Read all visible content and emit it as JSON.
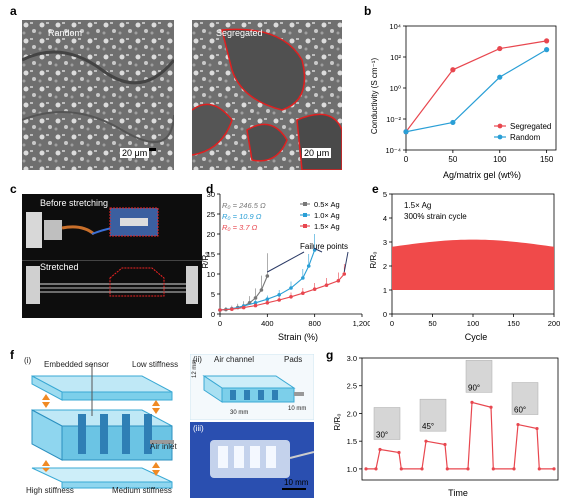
{
  "panels": {
    "a": {
      "letter": "a",
      "left_label": "Random",
      "right_label": "Segregated",
      "left_scale": "20 μm",
      "right_scale": "20 μm"
    },
    "b": {
      "letter": "b",
      "xlabel": "Ag/matrix gel (wt%)",
      "ylabel": "Conductivity (S cm⁻¹)"
    },
    "c": {
      "letter": "c",
      "top_label": "Before stretching",
      "bottom_label": "Stretched"
    },
    "d": {
      "letter": "d",
      "xlabel": "Strain (%)",
      "ylabel": "R/R₀",
      "r0_labels": [
        "R₀ = 246.5 Ω",
        "R₀ = 10.9 Ω",
        "R₀ = 3.7 Ω"
      ],
      "annotation": "Failure points"
    },
    "e": {
      "letter": "e",
      "xlabel": "Cycle",
      "ylabel": "R/R₀",
      "note_line1": "1.5× Ag",
      "note_line2": "300% strain cycle"
    },
    "f": {
      "letter": "f",
      "sub_i": "(i)",
      "sub_ii": "(ii)",
      "sub_iii": "(iii)",
      "embedded_sensor": "Embedded sensor",
      "low_stiffness": "Low stiffness",
      "air_inlet": "Air inlet",
      "high_stiffness": "High stiffness",
      "medium_stiffness": "Medium stiffness",
      "air_channel": "Air channel",
      "pads": "Pads",
      "dim_12": "12 mm",
      "dim_30": "30 mm",
      "dim_10": "10 mm",
      "scale_10mm": "10 mm"
    },
    "g": {
      "letter": "g",
      "xlabel": "Time",
      "ylabel": "R/R₀",
      "angles": [
        "30°",
        "45°",
        "90°",
        "60°"
      ]
    }
  },
  "colors": {
    "red": "#e8474f",
    "blue": "#2a9fd6",
    "gray": "#777777",
    "fill_red": "#f04a4a"
  },
  "chart_data": [
    {
      "id": "b",
      "type": "line",
      "xlabel": "Ag/matrix gel (wt%)",
      "ylabel": "Conductivity (S cm⁻¹)",
      "yscale": "log",
      "xlim": [
        0,
        160
      ],
      "ylim": [
        0.0001,
        10000
      ],
      "xticks": [
        "0",
        "50",
        "100",
        "150"
      ],
      "yticks": [
        "10⁻⁴",
        "10⁻²",
        "10⁰",
        "10²",
        "10⁴"
      ],
      "legend_position": "bottom-right",
      "series": [
        {
          "name": "Segregated",
          "x": [
            0,
            50,
            100,
            150
          ],
          "y": [
            0.0015,
            15,
            350,
            1100
          ]
        },
        {
          "name": "Random",
          "x": [
            0,
            50,
            100,
            150
          ],
          "y": [
            0.0015,
            0.006,
            5,
            300
          ]
        }
      ]
    },
    {
      "id": "d",
      "type": "line",
      "xlabel": "Strain (%)",
      "ylabel": "R/R₀",
      "xlim": [
        0,
        1200
      ],
      "ylim": [
        0,
        30
      ],
      "xticks": [
        "0",
        "400",
        "800",
        "1,200"
      ],
      "yticks": [
        "0",
        "5",
        "10",
        "15",
        "20",
        "25",
        "30"
      ],
      "series": [
        {
          "name": "0.5× Ag",
          "x": [
            0,
            50,
            100,
            150,
            200,
            250,
            300,
            350,
            400
          ],
          "y": [
            1,
            1.1,
            1.3,
            1.6,
            2.0,
            2.8,
            4.0,
            6.0,
            9.5
          ]
        },
        {
          "name": "1.0× Ag",
          "x": [
            0,
            100,
            200,
            300,
            400,
            500,
            600,
            700,
            750,
            800
          ],
          "y": [
            1,
            1.3,
            2.0,
            2.8,
            3.7,
            4.8,
            6.5,
            9.0,
            12.0,
            16.0
          ]
        },
        {
          "name": "1.5× Ag",
          "x": [
            0,
            100,
            200,
            300,
            400,
            500,
            600,
            700,
            800,
            900,
            1000,
            1050
          ],
          "y": [
            1,
            1.2,
            1.6,
            2.1,
            2.8,
            3.5,
            4.3,
            5.2,
            6.2,
            7.2,
            8.3,
            10.0
          ]
        }
      ]
    },
    {
      "id": "e",
      "type": "area",
      "xlabel": "Cycle",
      "ylabel": "R/R₀",
      "xlim": [
        0,
        200
      ],
      "ylim": [
        0,
        5
      ],
      "xticks": [
        "0",
        "50",
        "100",
        "150",
        "200"
      ],
      "yticks": [
        "0",
        "1",
        "2",
        "3",
        "4",
        "5"
      ],
      "band": {
        "low": 1.0,
        "high_start": 2.8,
        "high_end": 3.1
      }
    },
    {
      "id": "g",
      "type": "line",
      "xlabel": "Time",
      "ylabel": "R/R₀",
      "ylim": [
        0.8,
        3.0
      ],
      "yticks": [
        "1.0",
        "1.5",
        "2.0",
        "2.5",
        "3.0"
      ],
      "peaks": [
        {
          "label": "30°",
          "level": 1.35
        },
        {
          "label": "45°",
          "level": 1.5
        },
        {
          "label": "90°",
          "level": 2.2
        },
        {
          "label": "60°",
          "level": 1.8
        }
      ]
    }
  ]
}
